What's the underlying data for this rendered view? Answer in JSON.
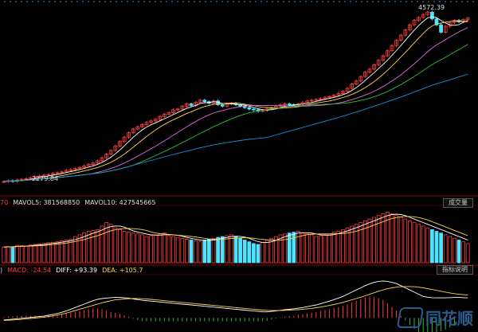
{
  "colors": {
    "up": "#ff3b3b",
    "down": "#4ee3ff",
    "ma5": "#ffffff",
    "ma10": "#ffd447",
    "ma20": "#d86ad8",
    "ma30": "#2ebd3e",
    "ma60": "#1b8fd6",
    "diff": "#ffffff",
    "dea": "#ffd447",
    "macd_up": "#ff3b3b",
    "macd_down": "#2ebd3e"
  },
  "price_panel": {
    "high_label": "4572.39",
    "low_label": "2279.84",
    "ma_lines": [
      {
        "name": "MA5",
        "color_key": "ma5"
      },
      {
        "name": "MA10",
        "color_key": "ma10"
      },
      {
        "name": "MA20",
        "color_key": "ma20"
      },
      {
        "name": "MA30",
        "color_key": "ma30"
      },
      {
        "name": "MA60",
        "color_key": "ma60"
      }
    ]
  },
  "volume_panel": {
    "prefix": "70",
    "mavol5_label": "MAVOL5: 381568850",
    "mavol10_label": "MAVOL10: 427545665",
    "button_label": "成交量"
  },
  "macd_panel": {
    "prefix": ")",
    "macd_label": "MACD: -24.54",
    "diff_label": "DIFF: +93.39",
    "dea_label": "DEA: +105.7",
    "button_label": "指标说明"
  },
  "logo_text": "同花顺",
  "chart_data": {
    "type": "candlestick",
    "close": [
      2280,
      2290,
      2282,
      2300,
      2310,
      2318,
      2330,
      2345,
      2352,
      2365,
      2375,
      2390,
      2400,
      2410,
      2430,
      2440,
      2455,
      2470,
      2490,
      2510,
      2530,
      2560,
      2600,
      2650,
      2700,
      2760,
      2820,
      2880,
      2940,
      2990,
      3020,
      3050,
      3080,
      3100,
      3120,
      3160,
      3190,
      3210,
      3250,
      3260,
      3300,
      3330,
      3310,
      3350,
      3380,
      3360,
      3340,
      3370,
      3320,
      3300,
      3330,
      3340,
      3320,
      3300,
      3280,
      3260,
      3250,
      3230,
      3240,
      3260,
      3280,
      3300,
      3320,
      3330,
      3320,
      3310,
      3330,
      3350,
      3370,
      3380,
      3390,
      3400,
      3420,
      3430,
      3450,
      3470,
      3500,
      3540,
      3600,
      3640,
      3700,
      3760,
      3800,
      3860,
      3920,
      3980,
      4050,
      4120,
      4190,
      4260,
      4330,
      4400,
      4460,
      4500,
      4540,
      4572,
      4480,
      4400,
      4300,
      4380,
      4430,
      4460,
      4440,
      4470,
      4490
    ],
    "volume": [
      180,
      185,
      182,
      200,
      195,
      190,
      205,
      210,
      215,
      220,
      230,
      235,
      240,
      250,
      260,
      270,
      300,
      320,
      340,
      360,
      370,
      380,
      420,
      460,
      440,
      400,
      380,
      360,
      350,
      340,
      330,
      320,
      300,
      310,
      320,
      330,
      340,
      310,
      300,
      290,
      280,
      270,
      260,
      250,
      240,
      260,
      270,
      280,
      290,
      300,
      310,
      320,
      300,
      280,
      260,
      240,
      220,
      210,
      230,
      260,
      280,
      300,
      320,
      330,
      340,
      350,
      360,
      340,
      330,
      320,
      300,
      310,
      320,
      330,
      350,
      360,
      380,
      400,
      420,
      440,
      460,
      480,
      500,
      520,
      540,
      560,
      580,
      560,
      540,
      520,
      500,
      480,
      460,
      440,
      420,
      400,
      380,
      360,
      340,
      320,
      300,
      280,
      260,
      240,
      220
    ],
    "macd_diff": [
      -10,
      -8,
      -6,
      -4,
      -2,
      0,
      2,
      4,
      6,
      8,
      12,
      16,
      20,
      26,
      32,
      40,
      48,
      56,
      64,
      72,
      80,
      86,
      90,
      92,
      94,
      96,
      95,
      94,
      92,
      88,
      85,
      82,
      80,
      78,
      76,
      74,
      72,
      70,
      68,
      66,
      64,
      62,
      60,
      58,
      56,
      54,
      52,
      50,
      48,
      46,
      44,
      42,
      40,
      38,
      36,
      34,
      32,
      30,
      28,
      28,
      30,
      32,
      35,
      38,
      40,
      42,
      45,
      48,
      52,
      56,
      60,
      66,
      72,
      78,
      85,
      92,
      100,
      110,
      120,
      130,
      140,
      150,
      158,
      165,
      170,
      172,
      170,
      165,
      160,
      150,
      140,
      130,
      120,
      110,
      100,
      96,
      94,
      93,
      93,
      93,
      94,
      95,
      95,
      94,
      93
    ],
    "macd_dea": [
      -12,
      -11,
      -10,
      -9,
      -7,
      -5,
      -3,
      -1,
      1,
      3,
      6,
      9,
      13,
      17,
      22,
      28,
      34,
      40,
      46,
      52,
      58,
      64,
      70,
      75,
      80,
      84,
      86,
      88,
      89,
      90,
      90,
      89,
      88,
      86,
      84,
      82,
      80,
      78,
      76,
      74,
      72,
      70,
      68,
      66,
      64,
      62,
      60,
      58,
      56,
      54,
      52,
      50,
      48,
      46,
      44,
      42,
      40,
      38,
      36,
      35,
      34,
      34,
      34,
      35,
      36,
      37,
      38,
      40,
      42,
      44,
      47,
      50,
      54,
      58,
      62,
      67,
      72,
      78,
      84,
      90,
      96,
      103,
      110,
      117,
      124,
      130,
      136,
      140,
      143,
      145,
      146,
      146,
      145,
      143,
      140,
      136,
      132,
      128,
      124,
      120,
      116,
      113,
      110,
      108,
      106
    ]
  }
}
